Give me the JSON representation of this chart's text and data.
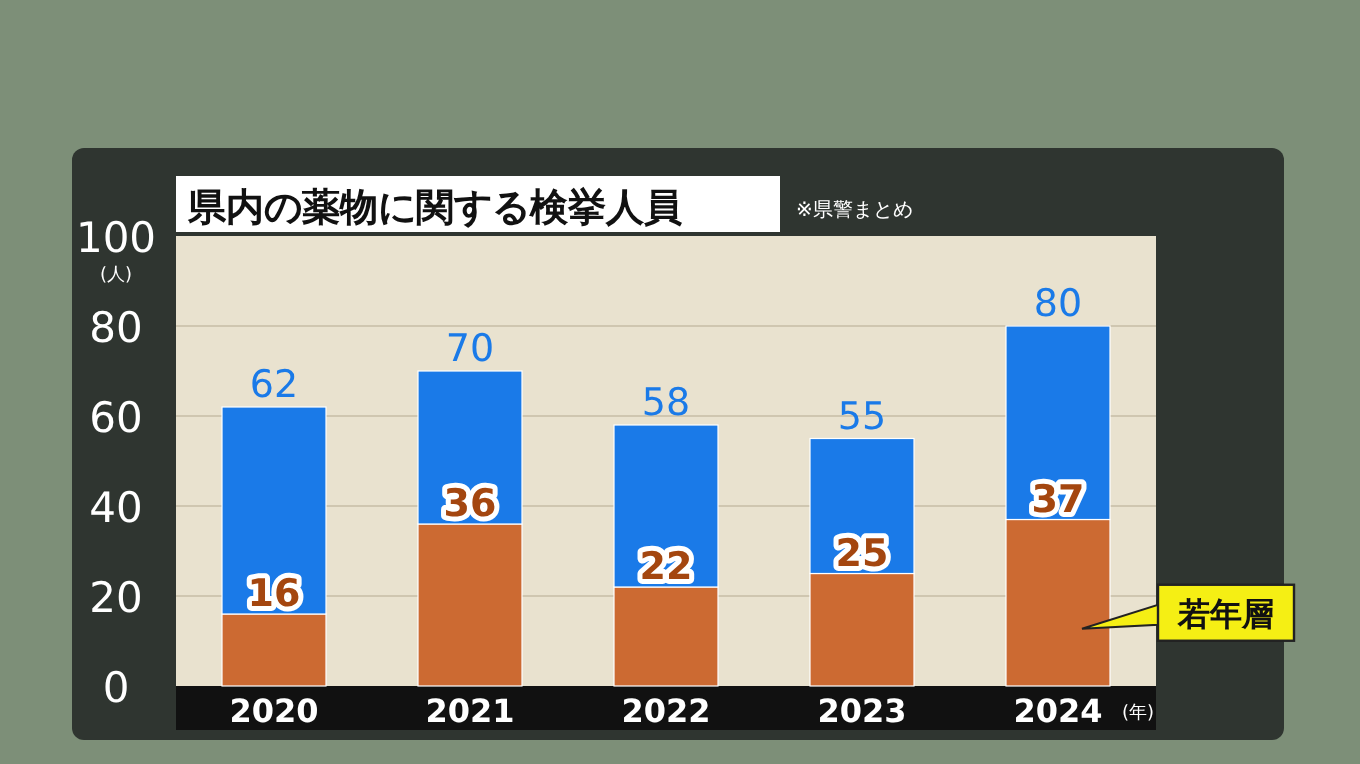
{
  "chart_data": {
    "type": "bar",
    "stacked": true,
    "title": "県内の薬物に関する検挙人員",
    "annotations": [
      "※県警まとめ"
    ],
    "ylabel": "(人)",
    "xlabel": "(年)",
    "categories": [
      "2020",
      "2021",
      "2022",
      "2023",
      "2024"
    ],
    "series": [
      {
        "name": "若年層",
        "color": "#cc6a32",
        "values": [
          16,
          36,
          22,
          25,
          37
        ],
        "value_labels": [
          "16",
          "36",
          "22",
          "25",
          "37"
        ]
      },
      {
        "color": "#1a7ae8",
        "values": [
          46,
          34,
          36,
          30,
          43
        ]
      }
    ],
    "totals": [
      "62",
      "70",
      "58",
      "55",
      "80"
    ],
    "ylim": [
      0,
      100
    ],
    "yticks": [
      0,
      20,
      40,
      60,
      80,
      100
    ],
    "grid": "y"
  }
}
